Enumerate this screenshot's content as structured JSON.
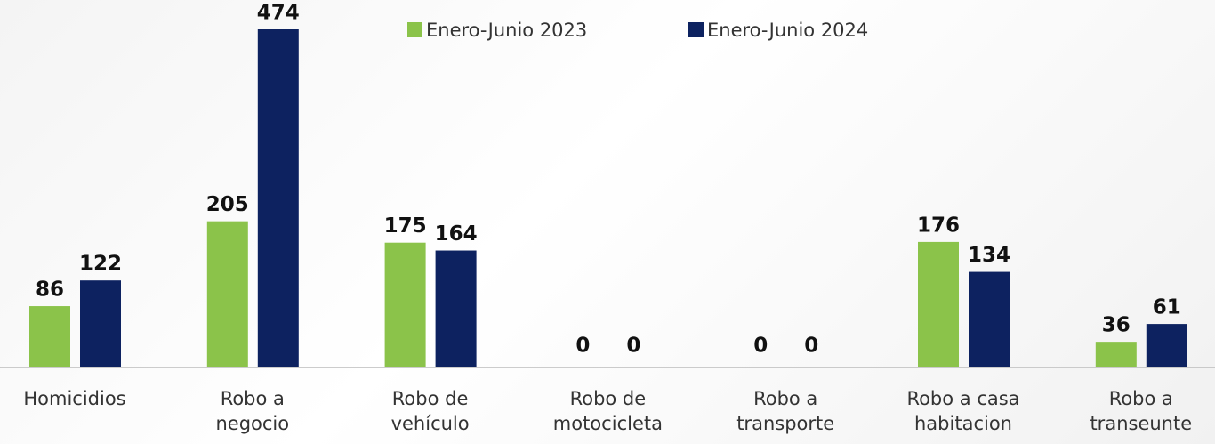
{
  "chart_data": {
    "type": "bar",
    "categories": [
      "Homicidios",
      "Robo a negocio",
      "Robo de vehículo",
      "Robo de motocicleta",
      "Robo a transporte",
      "Robo a casa habitacion",
      "Robo a transeunte"
    ],
    "series": [
      {
        "name": "Enero-Junio 2023",
        "color": "#8bc34a",
        "values": [
          86,
          205,
          175,
          0,
          0,
          176,
          36
        ]
      },
      {
        "name": "Enero-Junio 2024",
        "color": "#0d2260",
        "values": [
          122,
          474,
          164,
          0,
          0,
          134,
          61
        ]
      }
    ]
  }
}
